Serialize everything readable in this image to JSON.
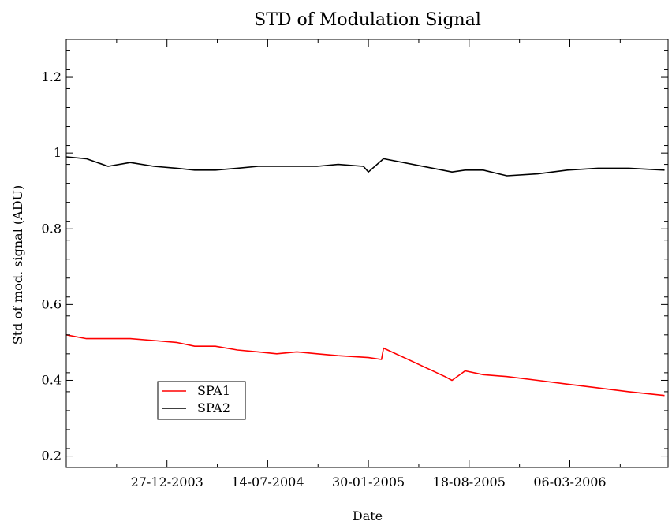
{
  "chart_data": {
    "type": "line",
    "title": "STD of Modulation Signal",
    "xlabel": "Date",
    "ylabel": "Std of mod. signal (ADU)",
    "x_type": "date",
    "xlim": [
      "2003-06-10",
      "2006-09-17"
    ],
    "ylim": [
      0.17,
      1.3
    ],
    "x_ticks": [
      "2003-12-27",
      "2004-07-14",
      "2005-01-30",
      "2005-08-18",
      "2006-03-06"
    ],
    "x_tick_labels": [
      "27-12-2003",
      "14-07-2004",
      "30-01-2005",
      "18-08-2005",
      "06-03-2006"
    ],
    "y_ticks": [
      0.2,
      0.4,
      0.6,
      0.8,
      1.0,
      1.2
    ],
    "y_tick_labels": [
      "0.2",
      "0.4",
      "0.6",
      "0.8",
      "1",
      "1.2"
    ],
    "legend_position": "lower-left",
    "grid": false,
    "series": [
      {
        "name": "SPA1",
        "color": "#ff0000",
        "points": [
          [
            "2003-06-10",
            0.52
          ],
          [
            "2003-07-20",
            0.51
          ],
          [
            "2003-09-01",
            0.51
          ],
          [
            "2003-10-15",
            0.51
          ],
          [
            "2003-12-01",
            0.505
          ],
          [
            "2004-01-15",
            0.5
          ],
          [
            "2004-02-20",
            0.49
          ],
          [
            "2004-04-01",
            0.49
          ],
          [
            "2004-05-15",
            0.48
          ],
          [
            "2004-06-25",
            0.475
          ],
          [
            "2004-08-01",
            0.47
          ],
          [
            "2004-09-10",
            0.475
          ],
          [
            "2004-10-20",
            0.47
          ],
          [
            "2004-12-01",
            0.465
          ],
          [
            "2005-01-30",
            0.46
          ],
          [
            "2005-02-25",
            0.455
          ],
          [
            "2005-03-01",
            0.485
          ],
          [
            "2005-07-01",
            0.41
          ],
          [
            "2005-07-15",
            0.4
          ],
          [
            "2005-08-10",
            0.425
          ],
          [
            "2005-09-15",
            0.415
          ],
          [
            "2005-11-01",
            0.41
          ],
          [
            "2006-01-01",
            0.4
          ],
          [
            "2006-03-01",
            0.39
          ],
          [
            "2006-05-01",
            0.38
          ],
          [
            "2006-07-01",
            0.37
          ],
          [
            "2006-09-10",
            0.36
          ]
        ]
      },
      {
        "name": "SPA2",
        "color": "#000000",
        "points": [
          [
            "2003-06-10",
            0.99
          ],
          [
            "2003-07-20",
            0.985
          ],
          [
            "2003-09-01",
            0.965
          ],
          [
            "2003-10-15",
            0.975
          ],
          [
            "2003-12-01",
            0.965
          ],
          [
            "2004-01-15",
            0.96
          ],
          [
            "2004-02-20",
            0.955
          ],
          [
            "2004-04-01",
            0.955
          ],
          [
            "2004-05-15",
            0.96
          ],
          [
            "2004-06-25",
            0.965
          ],
          [
            "2004-08-01",
            0.965
          ],
          [
            "2004-09-10",
            0.965
          ],
          [
            "2004-10-20",
            0.965
          ],
          [
            "2004-12-01",
            0.97
          ],
          [
            "2005-01-20",
            0.965
          ],
          [
            "2005-01-30",
            0.95
          ],
          [
            "2005-03-01",
            0.985
          ],
          [
            "2005-07-15",
            0.95
          ],
          [
            "2005-08-10",
            0.955
          ],
          [
            "2005-09-15",
            0.955
          ],
          [
            "2005-11-01",
            0.94
          ],
          [
            "2006-01-01",
            0.945
          ],
          [
            "2006-03-01",
            0.955
          ],
          [
            "2006-05-01",
            0.96
          ],
          [
            "2006-07-01",
            0.96
          ],
          [
            "2006-09-10",
            0.955
          ]
        ]
      }
    ]
  }
}
